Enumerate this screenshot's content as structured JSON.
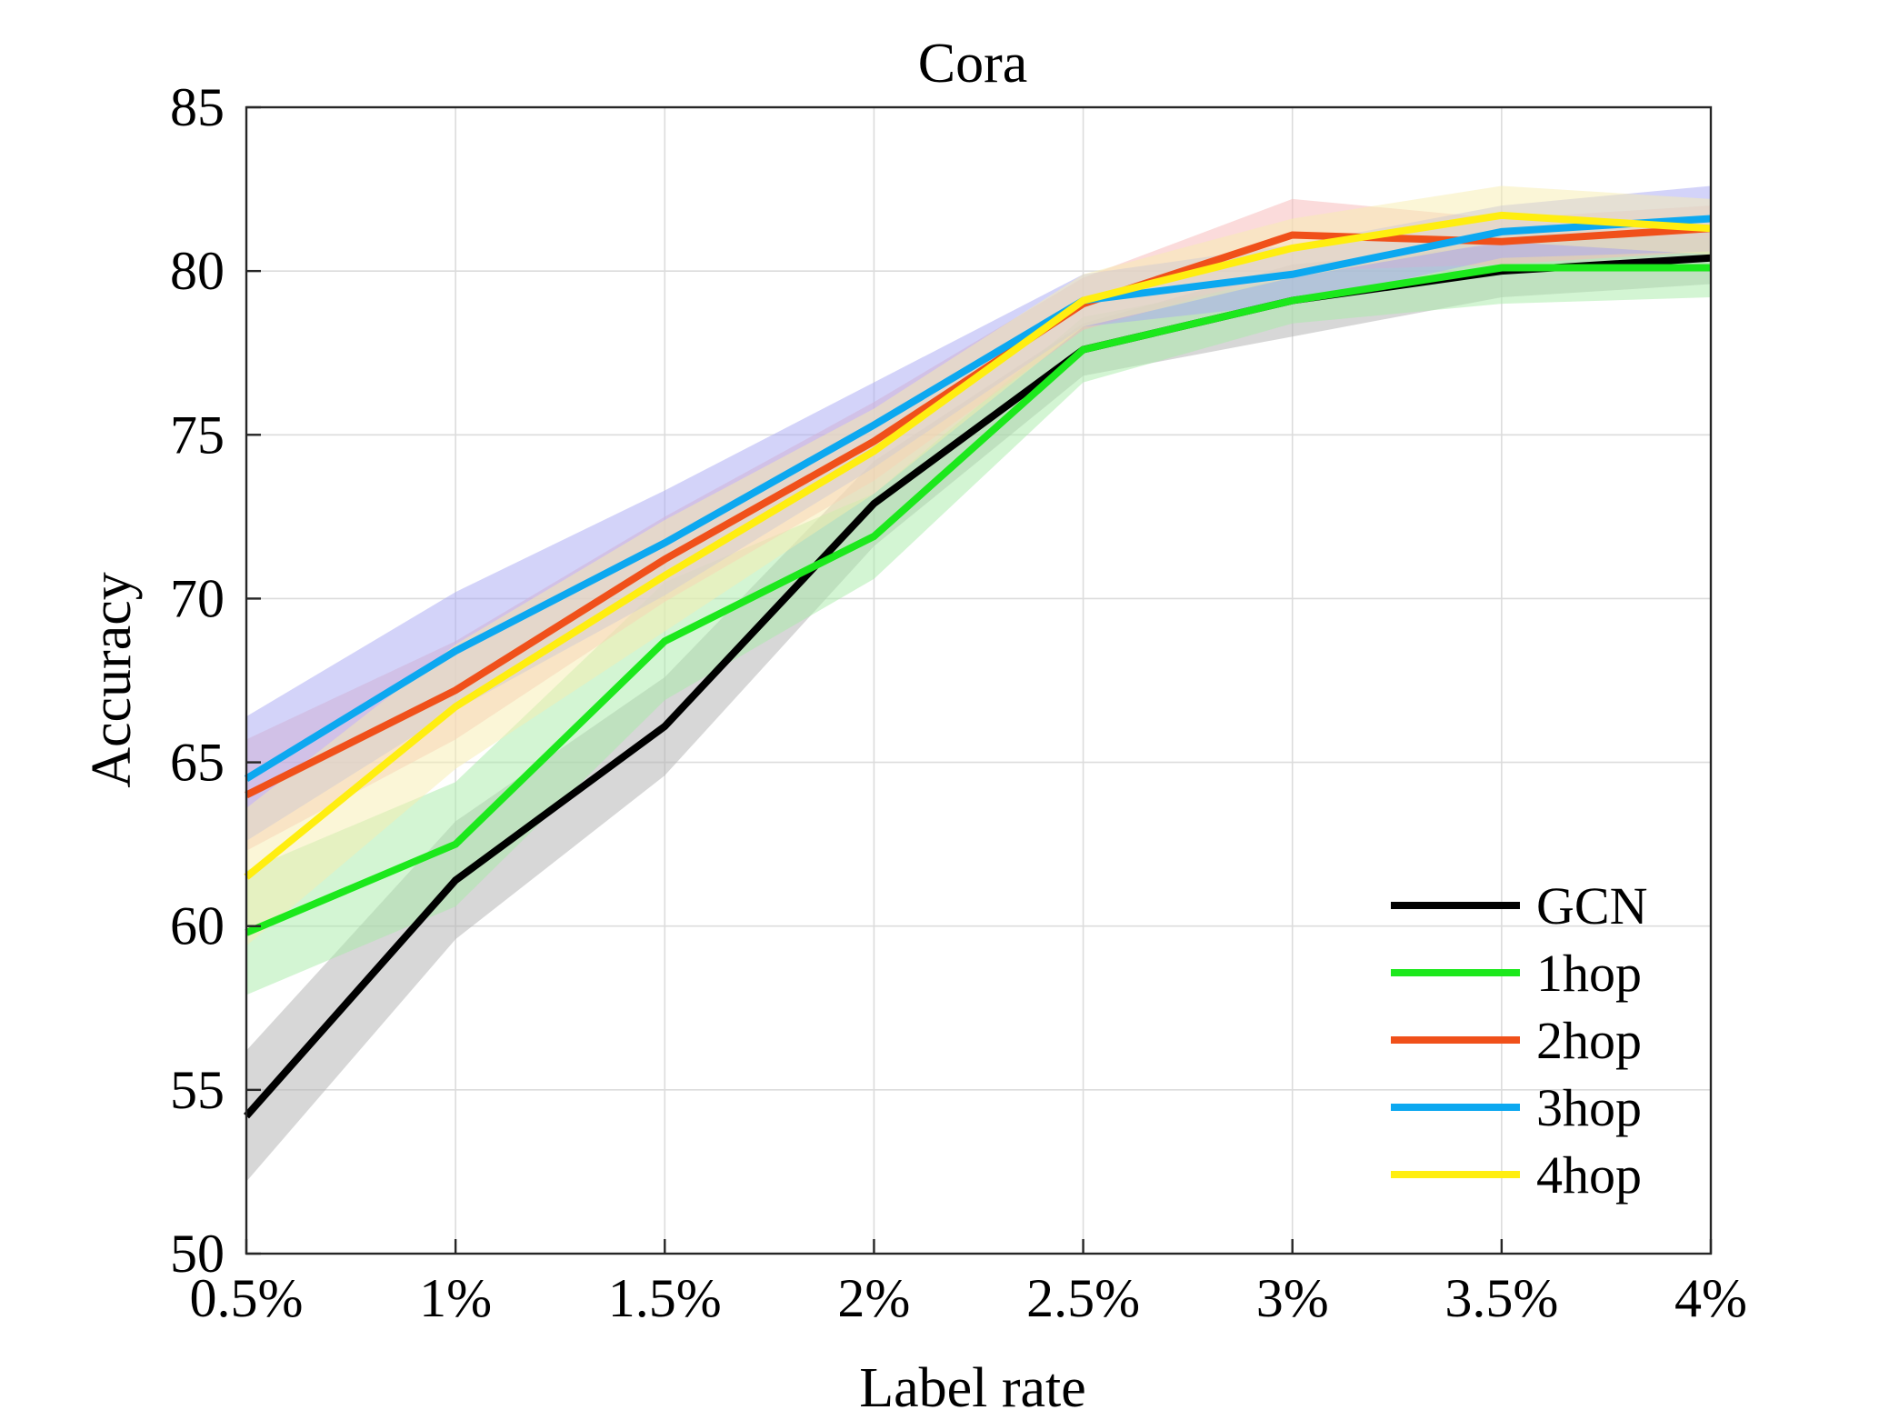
{
  "chart_data": {
    "type": "line",
    "title": "Cora",
    "xlabel": "Label rate",
    "ylabel": "Accuracy",
    "categories": [
      "0.5%",
      "1%",
      "1.5%",
      "2%",
      "2.5%",
      "3%",
      "3.5%",
      "4%"
    ],
    "ylim": [
      50,
      85
    ],
    "yticks": [
      "50",
      "55",
      "60",
      "65",
      "70",
      "75",
      "80",
      "85"
    ],
    "grid": true,
    "legend_position": "bottom-right",
    "series": [
      {
        "name": "GCN",
        "color": "#000000",
        "band": "#b0b0b0",
        "values": [
          54.2,
          61.4,
          66.1,
          72.9,
          77.6,
          79.1,
          80.0,
          80.4
        ],
        "lower": [
          52.2,
          59.6,
          64.6,
          71.6,
          76.8,
          78.0,
          79.2,
          79.6
        ],
        "upper": [
          56.2,
          63.2,
          67.6,
          74.2,
          78.4,
          80.2,
          80.8,
          81.2
        ]
      },
      {
        "name": "1hop",
        "color": "#1ce81c",
        "band": "#a8eca8",
        "values": [
          59.8,
          62.5,
          68.7,
          71.9,
          77.6,
          79.1,
          80.1,
          80.1
        ],
        "lower": [
          57.9,
          60.6,
          66.9,
          70.6,
          76.6,
          78.4,
          79.0,
          79.2
        ],
        "upper": [
          61.7,
          64.4,
          70.5,
          73.2,
          78.6,
          79.8,
          81.2,
          81.0
        ]
      },
      {
        "name": "2hop",
        "color": "#f0501a",
        "band": "#f8b8b8",
        "values": [
          64.0,
          67.2,
          71.2,
          74.8,
          79.0,
          81.1,
          80.9,
          81.3
        ],
        "lower": [
          62.3,
          65.7,
          69.9,
          73.6,
          78.2,
          80.0,
          80.2,
          80.6
        ],
        "upper": [
          65.7,
          68.7,
          72.5,
          76.0,
          79.8,
          82.2,
          81.6,
          82.0
        ]
      },
      {
        "name": "3hop",
        "color": "#0ca8f0",
        "band": "#a8a8f4",
        "values": [
          64.5,
          68.4,
          71.7,
          75.3,
          79.1,
          79.9,
          81.2,
          81.6
        ],
        "lower": [
          62.6,
          66.6,
          70.1,
          74.0,
          78.3,
          79.0,
          80.4,
          80.6
        ],
        "upper": [
          66.4,
          70.2,
          73.3,
          76.6,
          79.9,
          80.8,
          82.0,
          82.6
        ]
      },
      {
        "name": "4hop",
        "color": "#ffee10",
        "band": "#f8eeb0",
        "values": [
          61.5,
          66.7,
          70.7,
          74.5,
          79.1,
          80.7,
          81.7,
          81.3
        ],
        "lower": [
          59.4,
          64.8,
          69.0,
          73.2,
          78.3,
          79.8,
          80.9,
          80.5
        ],
        "upper": [
          63.6,
          68.6,
          72.4,
          75.8,
          79.9,
          81.6,
          82.6,
          82.2
        ]
      }
    ]
  }
}
